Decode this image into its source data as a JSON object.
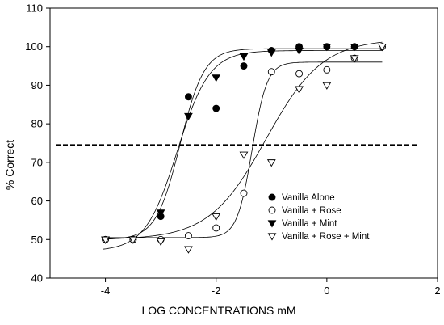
{
  "chart_data": {
    "type": "scatter",
    "title": "",
    "xlabel": "LOG CONCENTRATIONS mM",
    "ylabel": "% Correct",
    "xlim": [
      -5,
      2
    ],
    "ylim": [
      40,
      110
    ],
    "xticks": [
      -4,
      -2,
      0,
      2
    ],
    "yticks": [
      40,
      50,
      60,
      70,
      80,
      90,
      100,
      110
    ],
    "grid": false,
    "legend_position": "lower-right",
    "threshold_line": {
      "y": 74.5,
      "style": "dashed"
    },
    "series": [
      {
        "name": "Vanilla Alone",
        "marker": "filled-circle",
        "x": [
          -4,
          -3.5,
          -3,
          -2.5,
          -2,
          -1.5,
          -1,
          -0.5,
          0,
          0.5,
          1
        ],
        "y": [
          50,
          50,
          56,
          87,
          84,
          95,
          99,
          100,
          100,
          100,
          100
        ],
        "fit": {
          "bottom": 50,
          "top": 99.5,
          "x50": -2.65,
          "slope": 2.0
        }
      },
      {
        "name": "Vanilla + Rose",
        "marker": "open-circle",
        "x": [
          -4,
          -3.5,
          -3,
          -2.5,
          -2,
          -1.5,
          -1,
          -0.5,
          0,
          0.5,
          1
        ],
        "y": [
          50,
          50,
          50,
          51,
          53,
          62,
          93.5,
          93,
          94,
          97,
          100
        ],
        "fit": {
          "bottom": 50.5,
          "top": 96,
          "x50": -1.35,
          "slope": 3.2
        }
      },
      {
        "name": "Vanilla + Mint",
        "marker": "filled-triangle-down",
        "x": [
          -4,
          -3.5,
          -3,
          -2.5,
          -2,
          -1.5,
          -1,
          -0.5,
          0,
          0.5,
          1
        ],
        "y": [
          50,
          50,
          57,
          82,
          92,
          97.5,
          98.5,
          99,
          100,
          100,
          100
        ],
        "fit": {
          "bottom": 47,
          "top": 99,
          "x50": -2.7,
          "slope": 1.5
        }
      },
      {
        "name": "Vanilla + Rose + Mint",
        "marker": "open-triangle-down",
        "x": [
          -4,
          -3.5,
          -3,
          -2.5,
          -2,
          -1.5,
          -1,
          -0.5,
          0,
          0.5,
          1
        ],
        "y": [
          50,
          50,
          49.5,
          47.5,
          56,
          72,
          70,
          89,
          90,
          97,
          100
        ],
        "fit": {
          "bottom": 50,
          "top": 102,
          "x50": -1.1,
          "slope": 0.85
        }
      }
    ]
  }
}
